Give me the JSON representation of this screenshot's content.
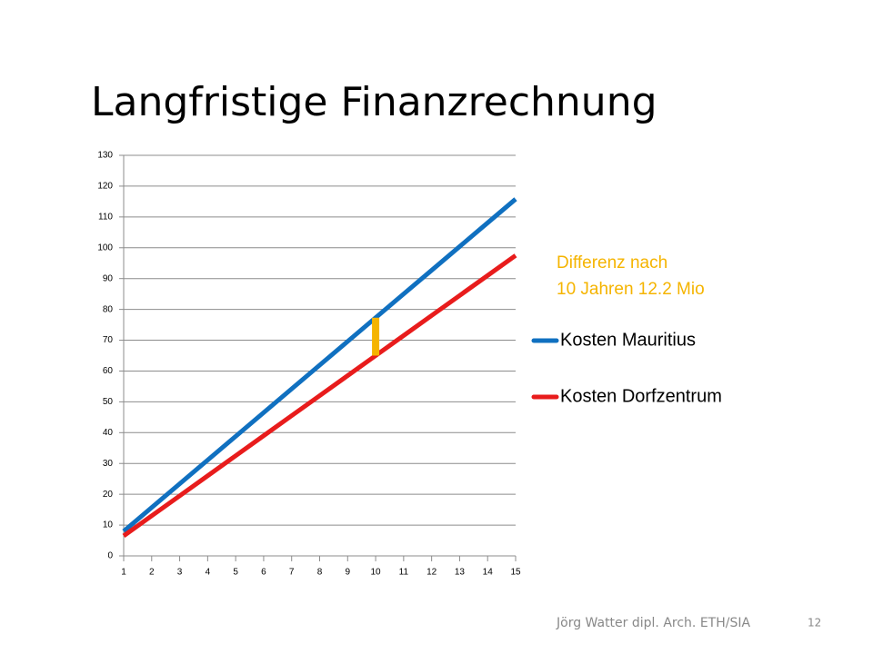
{
  "title": "Langfristige Finanzrechnung",
  "footer": {
    "author": "Jörg Watter dipl. Arch. ETH/SIA",
    "page": "12"
  },
  "chart_data": {
    "type": "line",
    "x": [
      1,
      2,
      3,
      4,
      5,
      6,
      7,
      8,
      9,
      10,
      11,
      12,
      13,
      14,
      15
    ],
    "xlim": [
      1,
      15
    ],
    "xticks": [
      1,
      2,
      3,
      4,
      5,
      6,
      7,
      8,
      9,
      10,
      11,
      12,
      13,
      14,
      15
    ],
    "ylim": [
      0,
      130
    ],
    "yticks": [
      0,
      10,
      20,
      30,
      40,
      50,
      60,
      70,
      80,
      90,
      100,
      110,
      120,
      130
    ],
    "grid": true,
    "series": [
      {
        "name": "Kosten Mauritius",
        "color": "#1070c0",
        "values": [
          8.0,
          15.7,
          23.4,
          31.1,
          38.8,
          46.5,
          54.2,
          61.9,
          69.6,
          77.3,
          85.0,
          92.7,
          100.4,
          108.1,
          115.8
        ]
      },
      {
        "name": "Kosten Dorfzentrum",
        "color": "#e81c1c",
        "values": [
          6.5,
          13.0,
          19.5,
          26.0,
          32.5,
          39.0,
          45.5,
          52.0,
          58.5,
          65.0,
          71.5,
          78.0,
          84.5,
          91.0,
          97.5
        ]
      }
    ],
    "annotation": {
      "lines": [
        "Differenz nach",
        "10 Jahren 12.2 Mio"
      ],
      "color": "#f5b400",
      "x_index": 9
    }
  }
}
